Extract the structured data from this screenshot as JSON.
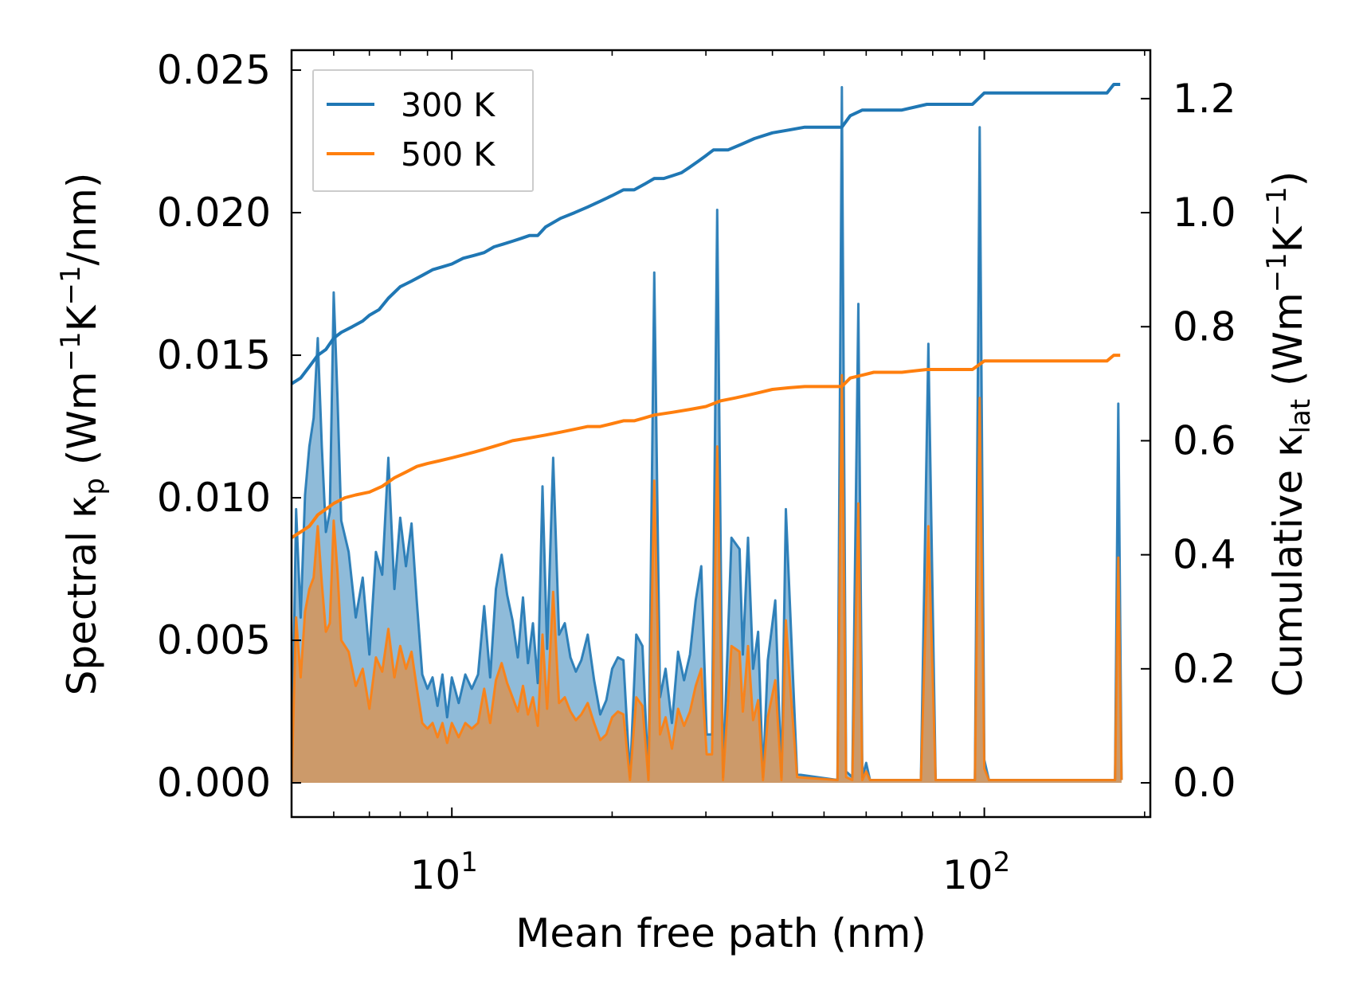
{
  "chart_data": {
    "type": "line",
    "title": "",
    "xlabel": "Mean free path (nm)",
    "xscale": "log",
    "xlim": [
      5.0,
      205
    ],
    "x_ticks": [
      {
        "value": 10,
        "label_base": "10",
        "label_exp": "1"
      },
      {
        "value": 100,
        "label_base": "10",
        "label_exp": "2"
      }
    ],
    "ylabel_left": {
      "prefix": "Spectral κ",
      "sub": "p",
      "units_open": " (Wm",
      "sup1": "−1",
      "mid": "K",
      "sup2": "−1",
      "units_close": "/nm)"
    },
    "ylabel_right": {
      "prefix": "Cumulative κ",
      "sub": "lat",
      "units_open": " (Wm",
      "sup1": "−1",
      "mid": "K",
      "sup2": "−1",
      "units_close": ")"
    },
    "ylim_left": [
      -0.0012,
      0.0257
    ],
    "yticks_left": [
      "0.000",
      "0.005",
      "0.010",
      "0.015",
      "0.020",
      "0.025"
    ],
    "ylim_right": [
      -0.06,
      1.285
    ],
    "yticks_right": [
      "0.0",
      "0.2",
      "0.4",
      "0.6",
      "0.8",
      "1.0",
      "1.2"
    ],
    "legend": {
      "position": "top-left",
      "entries": [
        {
          "label": "300 K",
          "color": "#1f77b4"
        },
        {
          "label": "500 K",
          "color": "#ff7f0e"
        }
      ]
    },
    "series": [
      {
        "name": "300 K spectral",
        "axis": "left",
        "style": "filled",
        "color": "#1f77b4",
        "x": [
          5.0,
          5.1,
          5.2,
          5.3,
          5.4,
          5.5,
          5.6,
          5.7,
          5.8,
          5.9,
          6.0,
          6.1,
          6.2,
          6.4,
          6.6,
          6.8,
          7.0,
          7.2,
          7.4,
          7.6,
          7.8,
          8.0,
          8.2,
          8.4,
          8.6,
          8.8,
          9.0,
          9.2,
          9.4,
          9.6,
          9.8,
          10.0,
          10.3,
          10.6,
          10.9,
          11.2,
          11.5,
          11.8,
          12.1,
          12.4,
          12.7,
          13.0,
          13.3,
          13.6,
          13.9,
          14.2,
          14.5,
          14.8,
          15.1,
          15.5,
          15.9,
          16.3,
          16.7,
          17.1,
          17.5,
          18.0,
          18.5,
          19.0,
          19.5,
          20.0,
          20.5,
          21.0,
          21.6,
          22.2,
          22.8,
          23.4,
          24.0,
          24.6,
          25.2,
          25.9,
          26.6,
          27.3,
          28.0,
          28.7,
          29.4,
          30.1,
          30.8,
          31.5,
          32.3,
          33.5,
          34.7,
          35.2,
          36.0,
          36.8,
          37.6,
          38.4,
          39.2,
          40.5,
          41.6,
          42.4,
          43.2,
          44.5,
          53.0,
          54.0,
          55.0,
          56.5,
          58.0,
          59.0,
          60.0,
          61.0,
          76.0,
          78.5,
          81.0,
          96.0,
          98.0,
          100.0,
          102.0,
          176.0,
          178.5,
          181.0
        ],
        "values": [
          0.0,
          0.0096,
          0.0058,
          0.0101,
          0.0118,
          0.0128,
          0.0156,
          0.0118,
          0.0088,
          0.0095,
          0.0172,
          0.0135,
          0.0092,
          0.0081,
          0.0058,
          0.0072,
          0.0045,
          0.0081,
          0.0073,
          0.0114,
          0.0068,
          0.0093,
          0.0076,
          0.0091,
          0.0063,
          0.0038,
          0.0033,
          0.0037,
          0.0027,
          0.0038,
          0.0023,
          0.0037,
          0.0028,
          0.0038,
          0.0033,
          0.0038,
          0.0062,
          0.0037,
          0.0068,
          0.008,
          0.0066,
          0.0057,
          0.0044,
          0.0065,
          0.0042,
          0.0056,
          0.0035,
          0.0104,
          0.0047,
          0.0114,
          0.0052,
          0.0056,
          0.0044,
          0.0039,
          0.0043,
          0.0052,
          0.0036,
          0.0024,
          0.0029,
          0.004,
          0.0044,
          0.0043,
          0.0002,
          0.0052,
          0.0048,
          0.0001,
          0.0179,
          0.003,
          0.004,
          0.0021,
          0.0046,
          0.0036,
          0.0045,
          0.0064,
          0.0076,
          0.0017,
          0.0017,
          0.0201,
          0.0002,
          0.0086,
          0.0082,
          0.0045,
          0.0086,
          0.004,
          0.0053,
          0.0002,
          0.0043,
          0.0064,
          0.0002,
          0.0096,
          0.006,
          0.0003,
          0.0001,
          0.0244,
          0.0004,
          0.0002,
          0.0168,
          0.0002,
          0.0007,
          0.0001,
          0.0001,
          0.0154,
          0.0001,
          0.0001,
          0.023,
          0.0008,
          0.0001,
          0.0001,
          0.0133,
          0.0001
        ]
      },
      {
        "name": "500 K spectral",
        "axis": "left",
        "style": "filled",
        "color": "#ff7f0e",
        "x": [
          5.0,
          5.1,
          5.2,
          5.3,
          5.4,
          5.5,
          5.6,
          5.7,
          5.8,
          5.9,
          6.0,
          6.1,
          6.2,
          6.4,
          6.6,
          6.8,
          7.0,
          7.2,
          7.4,
          7.6,
          7.8,
          8.0,
          8.2,
          8.4,
          8.6,
          8.8,
          9.0,
          9.2,
          9.4,
          9.6,
          9.8,
          10.0,
          10.3,
          10.6,
          10.9,
          11.2,
          11.5,
          11.8,
          12.1,
          12.4,
          12.7,
          13.0,
          13.3,
          13.6,
          13.9,
          14.2,
          14.5,
          14.8,
          15.1,
          15.5,
          15.9,
          16.3,
          16.7,
          17.1,
          17.5,
          18.0,
          18.5,
          19.0,
          19.5,
          20.0,
          20.5,
          21.0,
          21.6,
          22.2,
          22.8,
          23.4,
          24.0,
          24.6,
          25.2,
          25.9,
          26.6,
          27.3,
          28.0,
          28.7,
          29.4,
          30.1,
          30.8,
          31.5,
          32.3,
          33.5,
          34.7,
          35.2,
          36.0,
          36.8,
          37.6,
          38.4,
          39.2,
          40.5,
          41.6,
          42.4,
          43.2,
          44.5,
          53.0,
          54.0,
          55.0,
          56.5,
          58.0,
          59.0,
          60.0,
          61.0,
          76.0,
          78.5,
          81.0,
          96.0,
          98.0,
          100.0,
          102.0,
          176.0,
          178.5,
          181.0
        ],
        "values": [
          0.0,
          0.0058,
          0.0037,
          0.006,
          0.0068,
          0.0072,
          0.009,
          0.007,
          0.0053,
          0.0056,
          0.0092,
          0.0074,
          0.005,
          0.0046,
          0.0034,
          0.004,
          0.0026,
          0.0044,
          0.0039,
          0.0054,
          0.0037,
          0.0048,
          0.004,
          0.0046,
          0.0033,
          0.0021,
          0.0019,
          0.0021,
          0.0016,
          0.0021,
          0.0014,
          0.0021,
          0.0016,
          0.0021,
          0.0019,
          0.0021,
          0.0033,
          0.0021,
          0.0036,
          0.0042,
          0.0035,
          0.003,
          0.0025,
          0.0034,
          0.0024,
          0.003,
          0.002,
          0.0052,
          0.0026,
          0.0067,
          0.0028,
          0.003,
          0.0025,
          0.0022,
          0.0024,
          0.0028,
          0.0021,
          0.0015,
          0.0017,
          0.0023,
          0.0025,
          0.0024,
          0.0001,
          0.003,
          0.0027,
          0.0001,
          0.0106,
          0.0017,
          0.0023,
          0.0012,
          0.0026,
          0.002,
          0.0025,
          0.0034,
          0.004,
          0.001,
          0.001,
          0.0118,
          0.0001,
          0.0048,
          0.0046,
          0.0025,
          0.0048,
          0.0022,
          0.0029,
          0.0001,
          0.0023,
          0.0036,
          0.0001,
          0.0057,
          0.0034,
          0.0002,
          0.0001,
          0.0143,
          0.0002,
          0.0001,
          0.0098,
          0.0001,
          0.0004,
          0.0001,
          0.0001,
          0.009,
          0.0001,
          0.0001,
          0.0135,
          0.0005,
          0.0001,
          0.0001,
          0.0079,
          0.0001
        ]
      },
      {
        "name": "300 K cumulative",
        "axis": "right",
        "style": "line",
        "color": "#1f77b4",
        "x": [
          5.0,
          5.2,
          5.4,
          5.6,
          5.8,
          6.0,
          6.2,
          6.5,
          6.8,
          7.0,
          7.3,
          7.6,
          8.0,
          8.4,
          8.8,
          9.2,
          9.6,
          10.0,
          10.5,
          11.0,
          11.5,
          12.0,
          12.5,
          13.0,
          13.5,
          14.0,
          14.5,
          15.0,
          16.0,
          17.0,
          18.0,
          19.0,
          20.0,
          21.0,
          22.0,
          23.0,
          24.0,
          25.0,
          26.0,
          27.0,
          28.0,
          29.0,
          30.0,
          31.0,
          33.0,
          35.0,
          37.0,
          40.0,
          43.0,
          46.0,
          50.0,
          54.0,
          56.0,
          59.0,
          62.0,
          70.0,
          78.0,
          85.0,
          95.0,
          100.0,
          120.0,
          150.0,
          170.0,
          175.0,
          180.0
        ],
        "values": [
          0.7,
          0.71,
          0.73,
          0.75,
          0.76,
          0.78,
          0.79,
          0.8,
          0.81,
          0.82,
          0.83,
          0.85,
          0.87,
          0.88,
          0.89,
          0.9,
          0.905,
          0.91,
          0.92,
          0.925,
          0.93,
          0.94,
          0.945,
          0.95,
          0.955,
          0.96,
          0.96,
          0.975,
          0.99,
          1.0,
          1.01,
          1.02,
          1.03,
          1.04,
          1.04,
          1.05,
          1.06,
          1.06,
          1.065,
          1.07,
          1.08,
          1.09,
          1.1,
          1.11,
          1.11,
          1.12,
          1.13,
          1.14,
          1.145,
          1.15,
          1.15,
          1.15,
          1.17,
          1.18,
          1.18,
          1.18,
          1.19,
          1.19,
          1.19,
          1.21,
          1.21,
          1.21,
          1.21,
          1.225,
          1.225
        ]
      },
      {
        "name": "500 K cumulative",
        "axis": "right",
        "style": "line",
        "color": "#ff7f0e",
        "x": [
          5.0,
          5.2,
          5.4,
          5.6,
          5.8,
          6.0,
          6.3,
          6.6,
          7.0,
          7.4,
          7.8,
          8.2,
          8.6,
          9.0,
          9.5,
          10.0,
          10.5,
          11.0,
          11.5,
          12.0,
          12.5,
          13.0,
          14.0,
          15.0,
          16.0,
          17.0,
          18.0,
          19.0,
          20.0,
          21.0,
          22.0,
          23.0,
          24.0,
          26.0,
          28.0,
          30.0,
          32.0,
          34.0,
          36.0,
          38.0,
          40.0,
          43.0,
          46.0,
          50.0,
          54.0,
          56.0,
          59.0,
          62.0,
          70.0,
          78.0,
          85.0,
          95.0,
          100.0,
          130.0,
          170.0,
          175.0,
          180.0
        ],
        "values": [
          0.43,
          0.44,
          0.45,
          0.47,
          0.48,
          0.49,
          0.5,
          0.505,
          0.51,
          0.52,
          0.535,
          0.545,
          0.555,
          0.56,
          0.565,
          0.57,
          0.575,
          0.58,
          0.585,
          0.59,
          0.595,
          0.6,
          0.605,
          0.61,
          0.615,
          0.62,
          0.625,
          0.625,
          0.63,
          0.635,
          0.635,
          0.64,
          0.645,
          0.65,
          0.655,
          0.66,
          0.67,
          0.675,
          0.68,
          0.685,
          0.69,
          0.693,
          0.695,
          0.695,
          0.695,
          0.71,
          0.715,
          0.72,
          0.72,
          0.725,
          0.725,
          0.725,
          0.74,
          0.74,
          0.74,
          0.75,
          0.75
        ]
      }
    ]
  }
}
